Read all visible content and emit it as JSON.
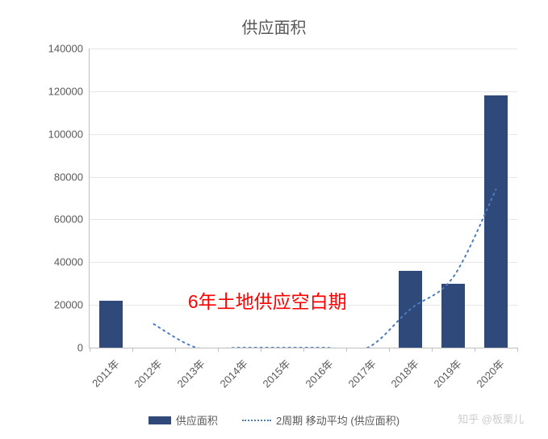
{
  "chart": {
    "type": "bar_with_ma",
    "title": "供应面积",
    "title_fontsize": 20,
    "title_color": "#595959",
    "background_color": "#ffffff",
    "categories": [
      "2011年",
      "2012年",
      "2013年",
      "2014年",
      "2015年",
      "2016年",
      "2017年",
      "2018年",
      "2019年",
      "2020年"
    ],
    "values": [
      22000,
      0,
      0,
      0,
      0,
      0,
      0,
      36000,
      30000,
      118000
    ],
    "bar_color": "#2f4a7a",
    "bar_width_ratio": 0.55,
    "ylim": [
      0,
      140000
    ],
    "ytick_step": 20000,
    "axis_color": "#bfbfbf",
    "grid_color": "#e6e6e6",
    "tick_label_color": "#595959",
    "tick_fontsize": 13,
    "x_label_rotation": -45,
    "moving_average": {
      "ma_values": [
        null,
        11000,
        0,
        0,
        0,
        0,
        0,
        18000,
        33000,
        74000
      ],
      "line_color": "#4f7cbf",
      "line_style": "dotted",
      "line_width": 2
    },
    "annotation": {
      "text": "6年土地供应空白期",
      "color": "#ff0000",
      "fontsize": 23,
      "x_category_center": "2014年-2015年",
      "y_value": 20000
    },
    "legend": {
      "series_bar_label": "供应面积",
      "series_ma_label": "2周期 移动平均 (供应面积)"
    },
    "watermark": {
      "text": "知乎 @板栗儿",
      "color": "#cccccc",
      "position": "bottom-right"
    }
  }
}
